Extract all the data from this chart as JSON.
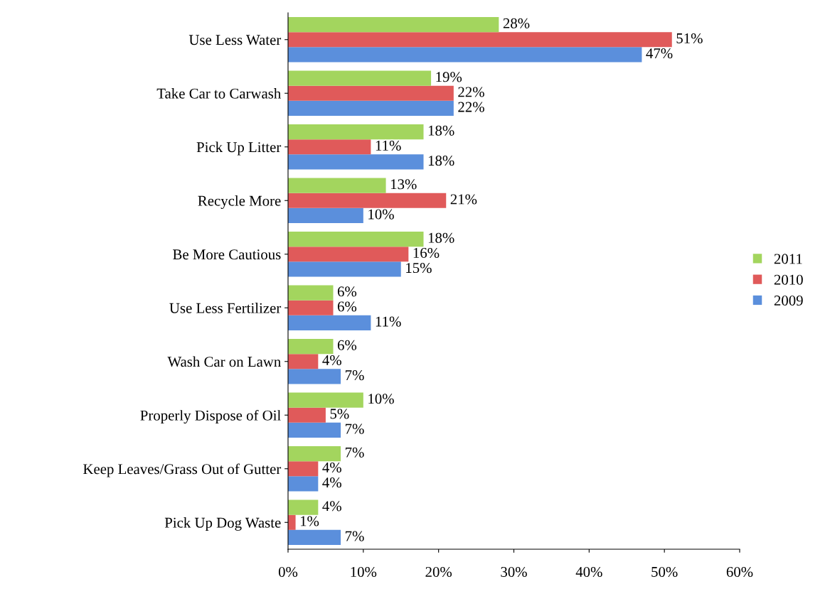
{
  "chart_data": {
    "type": "bar",
    "orientation": "horizontal",
    "categories": [
      "Use Less Water",
      "Take Car to Carwash",
      "Pick Up Litter",
      "Recycle More",
      "Be More Cautious",
      "Use Less Fertilizer",
      "Wash Car on Lawn",
      "Properly Dispose of Oil",
      "Keep Leaves/Grass Out of Gutter",
      "Pick Up Dog Waste"
    ],
    "series": [
      {
        "name": "2009",
        "color": "#5b8fdc",
        "values": [
          47,
          22,
          18,
          10,
          15,
          11,
          7,
          7,
          4,
          7
        ],
        "value_labels": [
          "47%",
          "22%",
          "18%",
          "10%",
          "15%",
          "11%",
          "7%",
          "7%",
          "4%",
          "7%"
        ]
      },
      {
        "name": "2010",
        "color": "#e05a5a",
        "values": [
          51,
          22,
          11,
          21,
          16,
          6,
          4,
          5,
          4,
          1
        ],
        "value_labels": [
          "51%",
          "22%",
          "11%",
          "21%",
          "16%",
          "6%",
          "4%",
          "5%",
          "4%",
          "1%"
        ]
      },
      {
        "name": "2011",
        "color": "#a3d55e",
        "values": [
          28,
          19,
          18,
          13,
          18,
          6,
          6,
          10,
          7,
          4
        ],
        "value_labels": [
          "28%",
          "19%",
          "18%",
          "13%",
          "18%",
          "6%",
          "6%",
          "10%",
          "7%",
          "4%"
        ]
      }
    ],
    "xlim": [
      0,
      60
    ],
    "xticks": [
      {
        "value": 0,
        "label": "0%"
      },
      {
        "value": 10,
        "label": "10%"
      },
      {
        "value": 20,
        "label": "20%"
      },
      {
        "value": 30,
        "label": "30%"
      },
      {
        "value": 40,
        "label": "40%"
      },
      {
        "value": 50,
        "label": "50%"
      },
      {
        "value": 60,
        "label": "60%"
      }
    ],
    "grid": false,
    "legend": "right"
  }
}
